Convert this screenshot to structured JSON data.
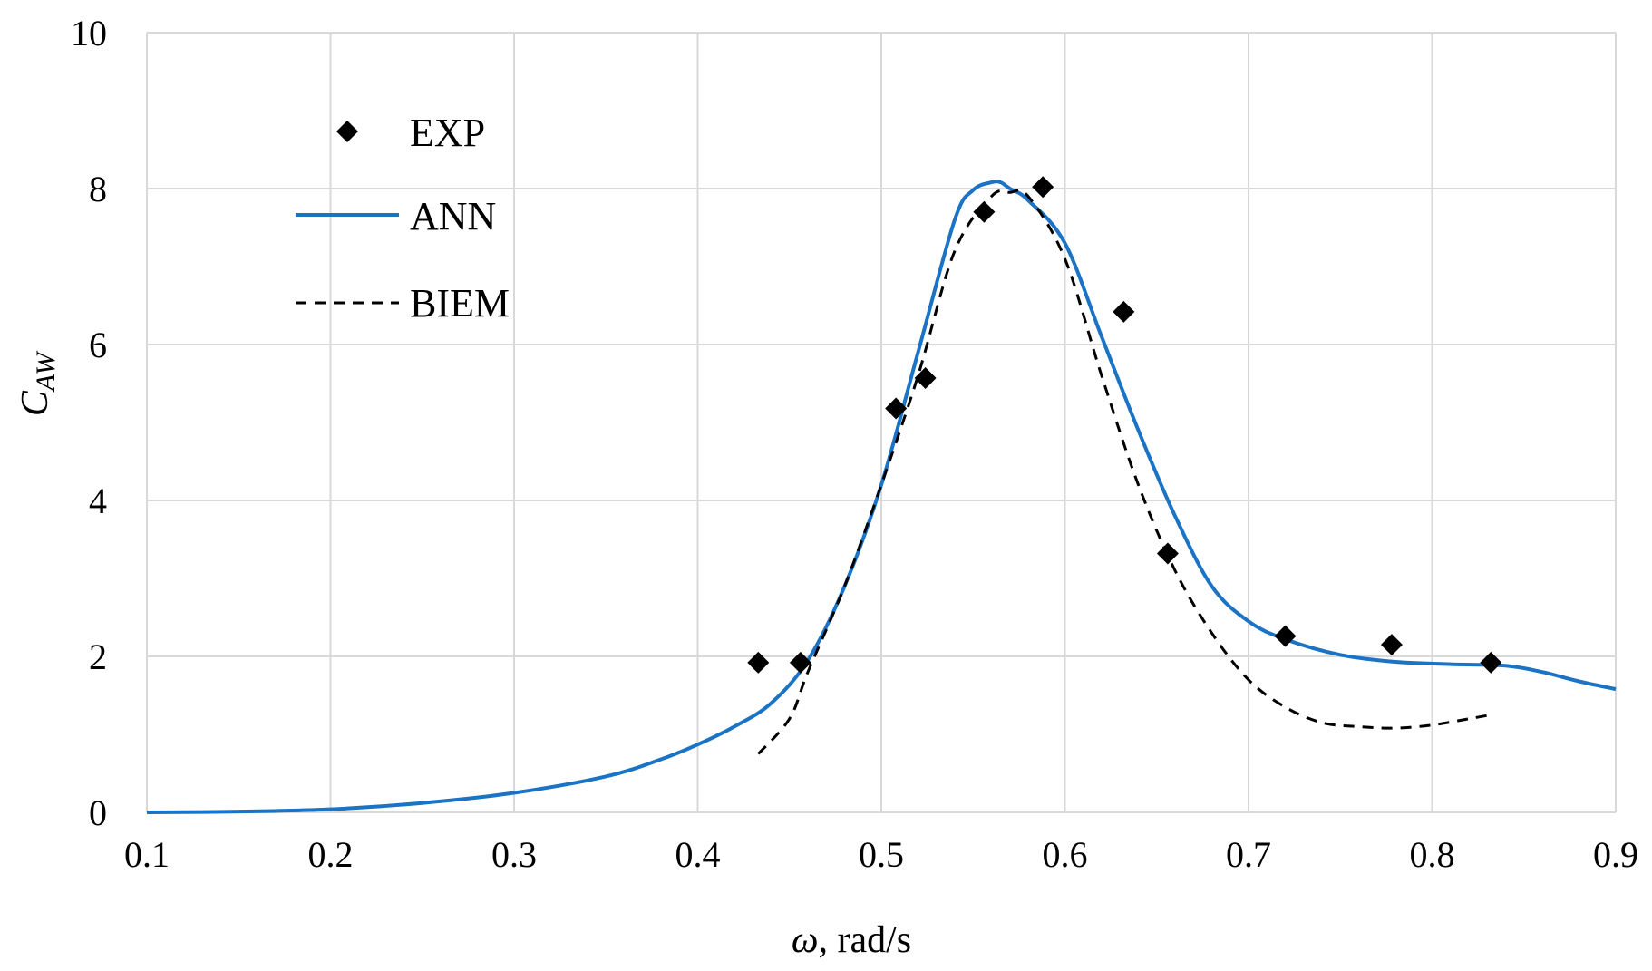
{
  "chart_data": {
    "type": "line",
    "title": "",
    "xlabel": "ω, rad/s",
    "xlabel_symbol": "ω",
    "xlabel_unit": ", rad/s",
    "ylabel_main": "C",
    "ylabel_sub": "AW",
    "xlim": [
      0.1,
      0.9
    ],
    "ylim": [
      0,
      10
    ],
    "xticks": [
      0.1,
      0.2,
      0.3,
      0.4,
      0.5,
      0.6,
      0.7,
      0.8,
      0.9
    ],
    "xtick_labels": [
      "0.1",
      "0.2",
      "0.3",
      "0.4",
      "0.5",
      "0.6",
      "0.7",
      "0.8",
      "0.9"
    ],
    "yticks": [
      0,
      2,
      4,
      6,
      8,
      10
    ],
    "ytick_labels": [
      "0",
      "2",
      "4",
      "6",
      "8",
      "10"
    ],
    "grid": true,
    "legend_position": "top-left",
    "series": [
      {
        "name": "EXP",
        "style": "markers",
        "marker": "diamond",
        "color": "#000000",
        "x": [
          0.433,
          0.456,
          0.508,
          0.524,
          0.556,
          0.588,
          0.632,
          0.656,
          0.72,
          0.778,
          0.832
        ],
        "y": [
          1.92,
          1.92,
          5.18,
          5.57,
          7.7,
          8.02,
          6.42,
          3.32,
          2.26,
          2.15,
          1.92
        ]
      },
      {
        "name": "ANN",
        "style": "solid",
        "color": "#1a73c4",
        "x": [
          0.1,
          0.15,
          0.2,
          0.25,
          0.3,
          0.35,
          0.38,
          0.4,
          0.42,
          0.44,
          0.46,
          0.48,
          0.5,
          0.52,
          0.54,
          0.55,
          0.56,
          0.565,
          0.57,
          0.58,
          0.6,
          0.62,
          0.64,
          0.66,
          0.68,
          0.7,
          0.72,
          0.75,
          0.78,
          0.81,
          0.84,
          0.86,
          0.88,
          0.9
        ],
        "y": [
          0.0,
          0.01,
          0.04,
          0.12,
          0.25,
          0.46,
          0.68,
          0.87,
          1.1,
          1.4,
          1.95,
          2.9,
          4.2,
          5.9,
          7.6,
          7.98,
          8.08,
          8.08,
          8.0,
          7.85,
          7.3,
          6.1,
          4.9,
          3.8,
          2.9,
          2.45,
          2.22,
          2.02,
          1.93,
          1.9,
          1.88,
          1.8,
          1.68,
          1.58
        ]
      },
      {
        "name": "BIEM",
        "style": "dashed",
        "color": "#000000",
        "x": [
          0.433,
          0.45,
          0.46,
          0.48,
          0.5,
          0.52,
          0.54,
          0.56,
          0.57,
          0.58,
          0.6,
          0.62,
          0.64,
          0.66,
          0.68,
          0.7,
          0.72,
          0.74,
          0.76,
          0.78,
          0.8,
          0.82,
          0.832
        ],
        "y": [
          0.75,
          1.2,
          1.8,
          2.9,
          4.2,
          5.6,
          7.2,
          7.9,
          7.95,
          7.9,
          7.1,
          5.6,
          4.2,
          3.1,
          2.3,
          1.7,
          1.35,
          1.15,
          1.1,
          1.08,
          1.12,
          1.2,
          1.25
        ]
      }
    ]
  }
}
